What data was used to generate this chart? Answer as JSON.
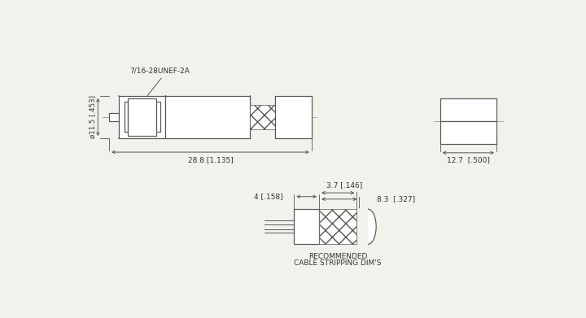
{
  "bg_color": "#f2f2ed",
  "line_color": "#555555",
  "text_color": "#333333",
  "label_thread": "7/16-28UNEF-2A",
  "label_recommended_1": "RECOMMENDED",
  "label_recommended_2": "CABLE STRIPPING DIM'S",
  "dim_288": "28.8 [1.135]",
  "dim_115": "ø11.5 [.453]",
  "dim_37": "3.7 [.146]",
  "dim_4": "4 [.158]",
  "dim_83": "8.3  [.327]",
  "dim_127": "12.7  [.500]"
}
